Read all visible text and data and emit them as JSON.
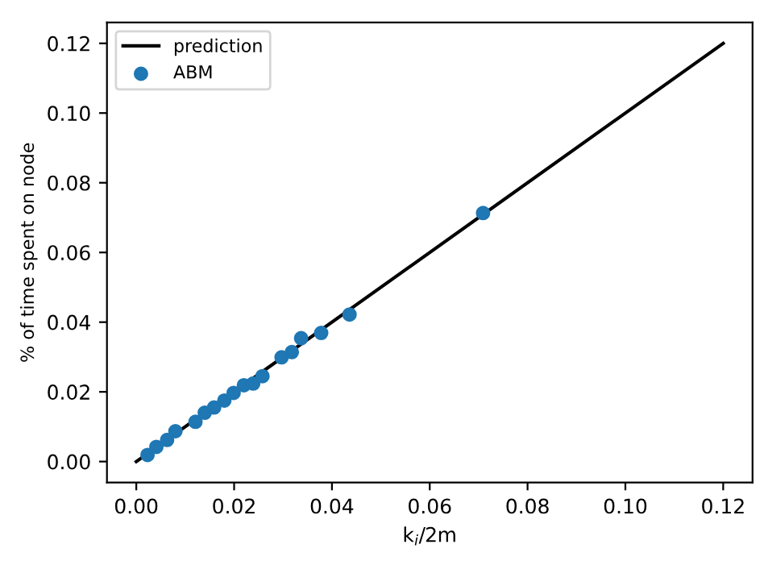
{
  "chart_data": {
    "type": "scatter",
    "xlabel": "k$_{i}$/2m",
    "ylabel": "% of time spent on node",
    "series": [
      {
        "name": "prediction",
        "type": "line",
        "color": "#000000",
        "x": [
          0,
          0.12
        ],
        "values": [
          0,
          0.12
        ],
        "marker": "none"
      },
      {
        "name": "ABM",
        "color": "#1f77b4",
        "marker": "circle",
        "x": [
          0.0023,
          0.0041,
          0.0063,
          0.008,
          0.0121,
          0.014,
          0.0159,
          0.018,
          0.0199,
          0.022,
          0.0239,
          0.0258,
          0.0297,
          0.0318,
          0.0337,
          0.0378,
          0.0436,
          0.0709
        ],
        "values": [
          0.0019,
          0.0042,
          0.0062,
          0.0087,
          0.0114,
          0.014,
          0.0155,
          0.0175,
          0.0197,
          0.0219,
          0.0224,
          0.0245,
          0.0299,
          0.0314,
          0.0354,
          0.0369,
          0.0422,
          0.0713
        ]
      }
    ],
    "xlim": [
      -0.006,
      0.126
    ],
    "ylim": [
      -0.006,
      0.126
    ],
    "xticks": [
      {
        "value": 0,
        "label": "0.00"
      },
      0.02,
      0.04,
      0.06,
      0.08,
      {
        "value": 0.1,
        "label": "0.10"
      },
      0.12
    ],
    "yticks": [
      {
        "value": 0,
        "label": "0.00"
      },
      0.02,
      0.04,
      0.06,
      0.08,
      {
        "value": 0.1,
        "label": "0.10"
      },
      0.12
    ],
    "legend": "top left",
    "grid": false
  }
}
